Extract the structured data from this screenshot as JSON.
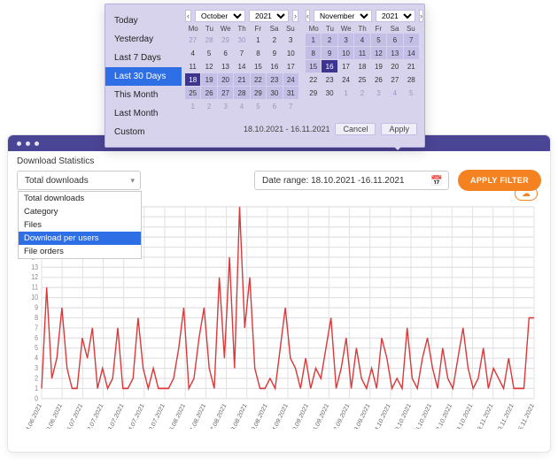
{
  "window": {
    "title": "Download Statistics"
  },
  "filters": {
    "dropdown_selected": "Total downloads",
    "dropdown_options": [
      "Total downloads",
      "Category",
      "Files",
      "Download per users",
      "File orders"
    ],
    "dropdown_highlight_index": 3,
    "date_label_prefix": "Date range: ",
    "date_from": "18.10.2021",
    "date_to": "16.11.2021",
    "apply_label": "APPLY FILTER"
  },
  "picker": {
    "presets": [
      "Today",
      "Yesterday",
      "Last 7 Days",
      "Last 30 Days",
      "This Month",
      "Last Month",
      "Custom"
    ],
    "active_preset_index": 3,
    "range_label": "18.10.2021 - 16.11.2021",
    "cancel_label": "Cancel",
    "apply_label": "Apply",
    "dow": [
      "Mo",
      "Tu",
      "We",
      "Th",
      "Fr",
      "Sa",
      "Su"
    ],
    "cal_left": {
      "month": "October",
      "year": "2021",
      "lead_out": [
        27,
        28,
        29,
        30
      ],
      "days": 31,
      "trail_out": [
        1,
        2,
        3,
        4,
        5,
        6,
        7
      ],
      "range_start": 18,
      "range_end": 31
    },
    "cal_right": {
      "month": "November",
      "year": "2021",
      "lead_out": [],
      "days": 30,
      "trail_out": [
        1,
        2,
        3,
        4,
        5
      ],
      "range_start": 1,
      "range_end": 16
    }
  },
  "chart": {
    "type": "line",
    "ylim": [
      0,
      19
    ],
    "ytick_step": 1,
    "line_color": "#da3a3a",
    "grid_color": "#e2e2e6",
    "background": "#ffffff",
    "axis_font_size": 7,
    "x_labels": [
      "24.06.2021",
      "30.06.2021",
      "06.07.2021",
      "12.07.2021",
      "18.07.2021",
      "24.07.2021",
      "30.07.2021",
      "05.08.2021",
      "11.08.2021",
      "17.08.2021",
      "23.08.2021",
      "29.08.2021",
      "04.09.2021",
      "10.09.2021",
      "16.09.2021",
      "22.09.2021",
      "28.09.2021",
      "04.10.2021",
      "10.10.2021",
      "16.10.2021",
      "22.10.2021",
      "28.10.2021",
      "03.11.2021",
      "09.11.2021",
      "15.11.2021"
    ],
    "values": [
      1,
      11,
      2,
      4,
      9,
      3,
      1,
      1,
      6,
      4,
      7,
      1,
      3,
      1,
      2,
      7,
      1,
      1,
      2,
      8,
      3,
      1,
      3,
      1,
      1,
      1,
      2,
      5,
      9,
      1,
      2,
      6,
      9,
      3,
      1,
      12,
      4,
      14,
      3,
      19,
      7,
      12,
      3,
      1,
      1,
      2,
      1,
      5,
      9,
      4,
      3,
      1,
      4,
      1,
      3,
      2,
      5,
      8,
      1,
      3,
      6,
      1,
      5,
      2,
      1,
      3,
      1,
      6,
      4,
      1,
      2,
      1,
      7,
      2,
      1,
      4,
      6,
      3,
      1,
      5,
      2,
      1,
      4,
      7,
      3,
      1,
      2,
      5,
      1,
      3,
      2,
      1,
      4,
      1,
      1,
      1,
      8,
      8
    ]
  }
}
